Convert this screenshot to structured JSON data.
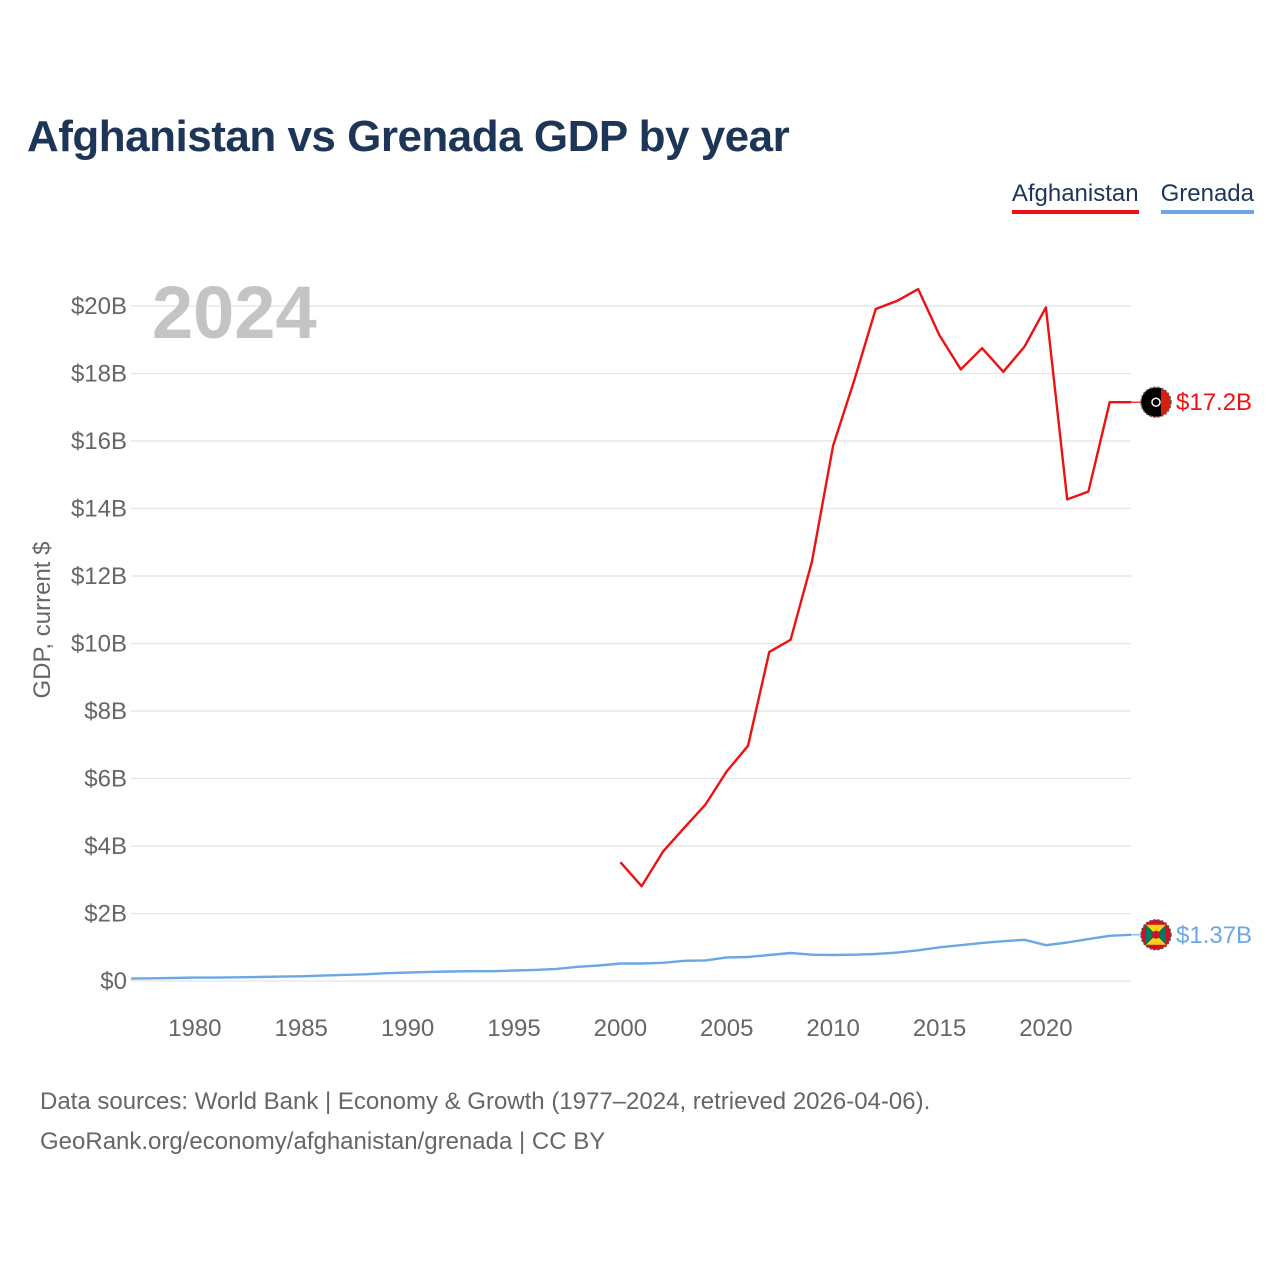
{
  "title": "Afghanistan vs Grenada GDP by year",
  "year_label": "2024",
  "legend": [
    {
      "name": "Afghanistan",
      "color": "#ee1111"
    },
    {
      "name": "Grenada",
      "color": "#6aa7e4"
    }
  ],
  "footer": {
    "line1": "Data sources: World Bank | Economy & Growth (1977–2024, retrieved 2026-04-06).",
    "line2": "GeoRank.org/economy/afghanistan/grenada | CC BY"
  },
  "chart_data": {
    "type": "line",
    "title": "Afghanistan vs Grenada GDP by year",
    "xlabel": "",
    "ylabel": "GDP, current $",
    "xlim": [
      1977,
      2024
    ],
    "ylim": [
      0,
      20
    ],
    "y_unit": "billions of current US$",
    "x_ticks": [
      1980,
      1985,
      1990,
      1995,
      2000,
      2005,
      2010,
      2015,
      2020
    ],
    "y_ticks": [
      0,
      2,
      4,
      6,
      8,
      10,
      12,
      14,
      16,
      18,
      20
    ],
    "y_tick_labels": [
      "$0",
      "$2B",
      "$4B",
      "$6B",
      "$8B",
      "$10B",
      "$12B",
      "$14B",
      "$16B",
      "$18B",
      "$20B"
    ],
    "grid": true,
    "series": [
      {
        "name": "Afghanistan",
        "color": "#ee1111",
        "end_label": "$17.2B",
        "x": [
          2000,
          2001,
          2002,
          2003,
          2004,
          2005,
          2006,
          2007,
          2008,
          2009,
          2010,
          2011,
          2012,
          2013,
          2014,
          2015,
          2016,
          2017,
          2018,
          2019,
          2020,
          2021,
          2022,
          2023,
          2024
        ],
        "values": [
          3.52,
          2.81,
          3.83,
          4.54,
          5.23,
          6.21,
          6.97,
          9.75,
          10.11,
          12.42,
          15.86,
          17.81,
          19.91,
          20.15,
          20.5,
          19.13,
          18.12,
          18.75,
          18.05,
          18.8,
          19.96,
          14.27,
          14.5,
          17.15,
          17.15
        ]
      },
      {
        "name": "Grenada",
        "color": "#6aa7e4",
        "end_label": "$1.37B",
        "x": [
          1977,
          1978,
          1979,
          1980,
          1981,
          1982,
          1983,
          1984,
          1985,
          1986,
          1987,
          1988,
          1989,
          1990,
          1991,
          1992,
          1993,
          1994,
          1995,
          1996,
          1997,
          1998,
          1999,
          2000,
          2001,
          2002,
          2003,
          2004,
          2005,
          2006,
          2007,
          2008,
          2009,
          2010,
          2011,
          2012,
          2013,
          2014,
          2015,
          2016,
          2017,
          2018,
          2019,
          2020,
          2021,
          2022,
          2023,
          2024
        ],
        "values": [
          0.07,
          0.08,
          0.09,
          0.1,
          0.1,
          0.11,
          0.12,
          0.13,
          0.14,
          0.16,
          0.18,
          0.2,
          0.23,
          0.25,
          0.27,
          0.28,
          0.29,
          0.29,
          0.31,
          0.33,
          0.36,
          0.42,
          0.46,
          0.52,
          0.52,
          0.54,
          0.6,
          0.61,
          0.7,
          0.71,
          0.77,
          0.83,
          0.78,
          0.77,
          0.78,
          0.8,
          0.84,
          0.91,
          1.0,
          1.06,
          1.13,
          1.18,
          1.22,
          1.06,
          1.14,
          1.24,
          1.34,
          1.37
        ]
      }
    ]
  }
}
